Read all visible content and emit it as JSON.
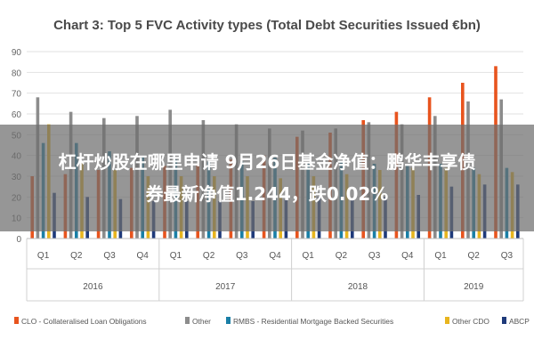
{
  "chart_data": {
    "type": "bar",
    "title": "Chart 3: Top 5 FVC Activity types (Total Debt Securities Issued €bn)",
    "ylim": [
      0,
      90
    ],
    "yticks": [
      0,
      10,
      20,
      30,
      40,
      50,
      60,
      70,
      80,
      90
    ],
    "categories": [
      "Q1",
      "Q2",
      "Q3",
      "Q4",
      "Q1",
      "Q2",
      "Q3",
      "Q4",
      "Q1",
      "Q2",
      "Q3",
      "Q4",
      "Q1",
      "Q2",
      "Q3"
    ],
    "groups": [
      {
        "label": "2016",
        "count": 4
      },
      {
        "label": "2017",
        "count": 4
      },
      {
        "label": "2018",
        "count": 4
      },
      {
        "label": "2019",
        "count": 3
      }
    ],
    "legend_position": "bottom",
    "series": [
      {
        "name": "CLO - Collateralised Loan Obligations",
        "color": "#e8541e",
        "values": [
          30,
          31,
          33,
          34,
          35,
          36,
          38,
          40,
          49,
          51,
          57,
          61,
          68,
          75,
          83
        ]
      },
      {
        "name": "Other",
        "color": "#8c8c8c",
        "values": [
          68,
          61,
          58,
          59,
          62,
          57,
          55,
          53,
          52,
          53,
          56,
          55,
          59,
          66,
          67
        ]
      },
      {
        "name": "RMBS - Residential Mortgage Backed Securities",
        "color": "#1a7fa6",
        "values": [
          46,
          46,
          42,
          39,
          38,
          37,
          37,
          39,
          36,
          37,
          36,
          35,
          36,
          34,
          34
        ]
      },
      {
        "name": "Other CDO",
        "color": "#e8b51e",
        "values": [
          55,
          37,
          33,
          30,
          30,
          30,
          30,
          29,
          30,
          31,
          33,
          34,
          34,
          31,
          32
        ]
      },
      {
        "name": "ABCP",
        "color": "#1f3a7a",
        "values": [
          22,
          20,
          19,
          18,
          18,
          18,
          18,
          19,
          20,
          19,
          20,
          21,
          25,
          26,
          26
        ]
      }
    ]
  },
  "overlay": {
    "line1": "杠杆炒股在哪里申请 9月26日基金净值：鹏华丰享债",
    "line2": "券最新净值1.244，跌0.02%"
  }
}
